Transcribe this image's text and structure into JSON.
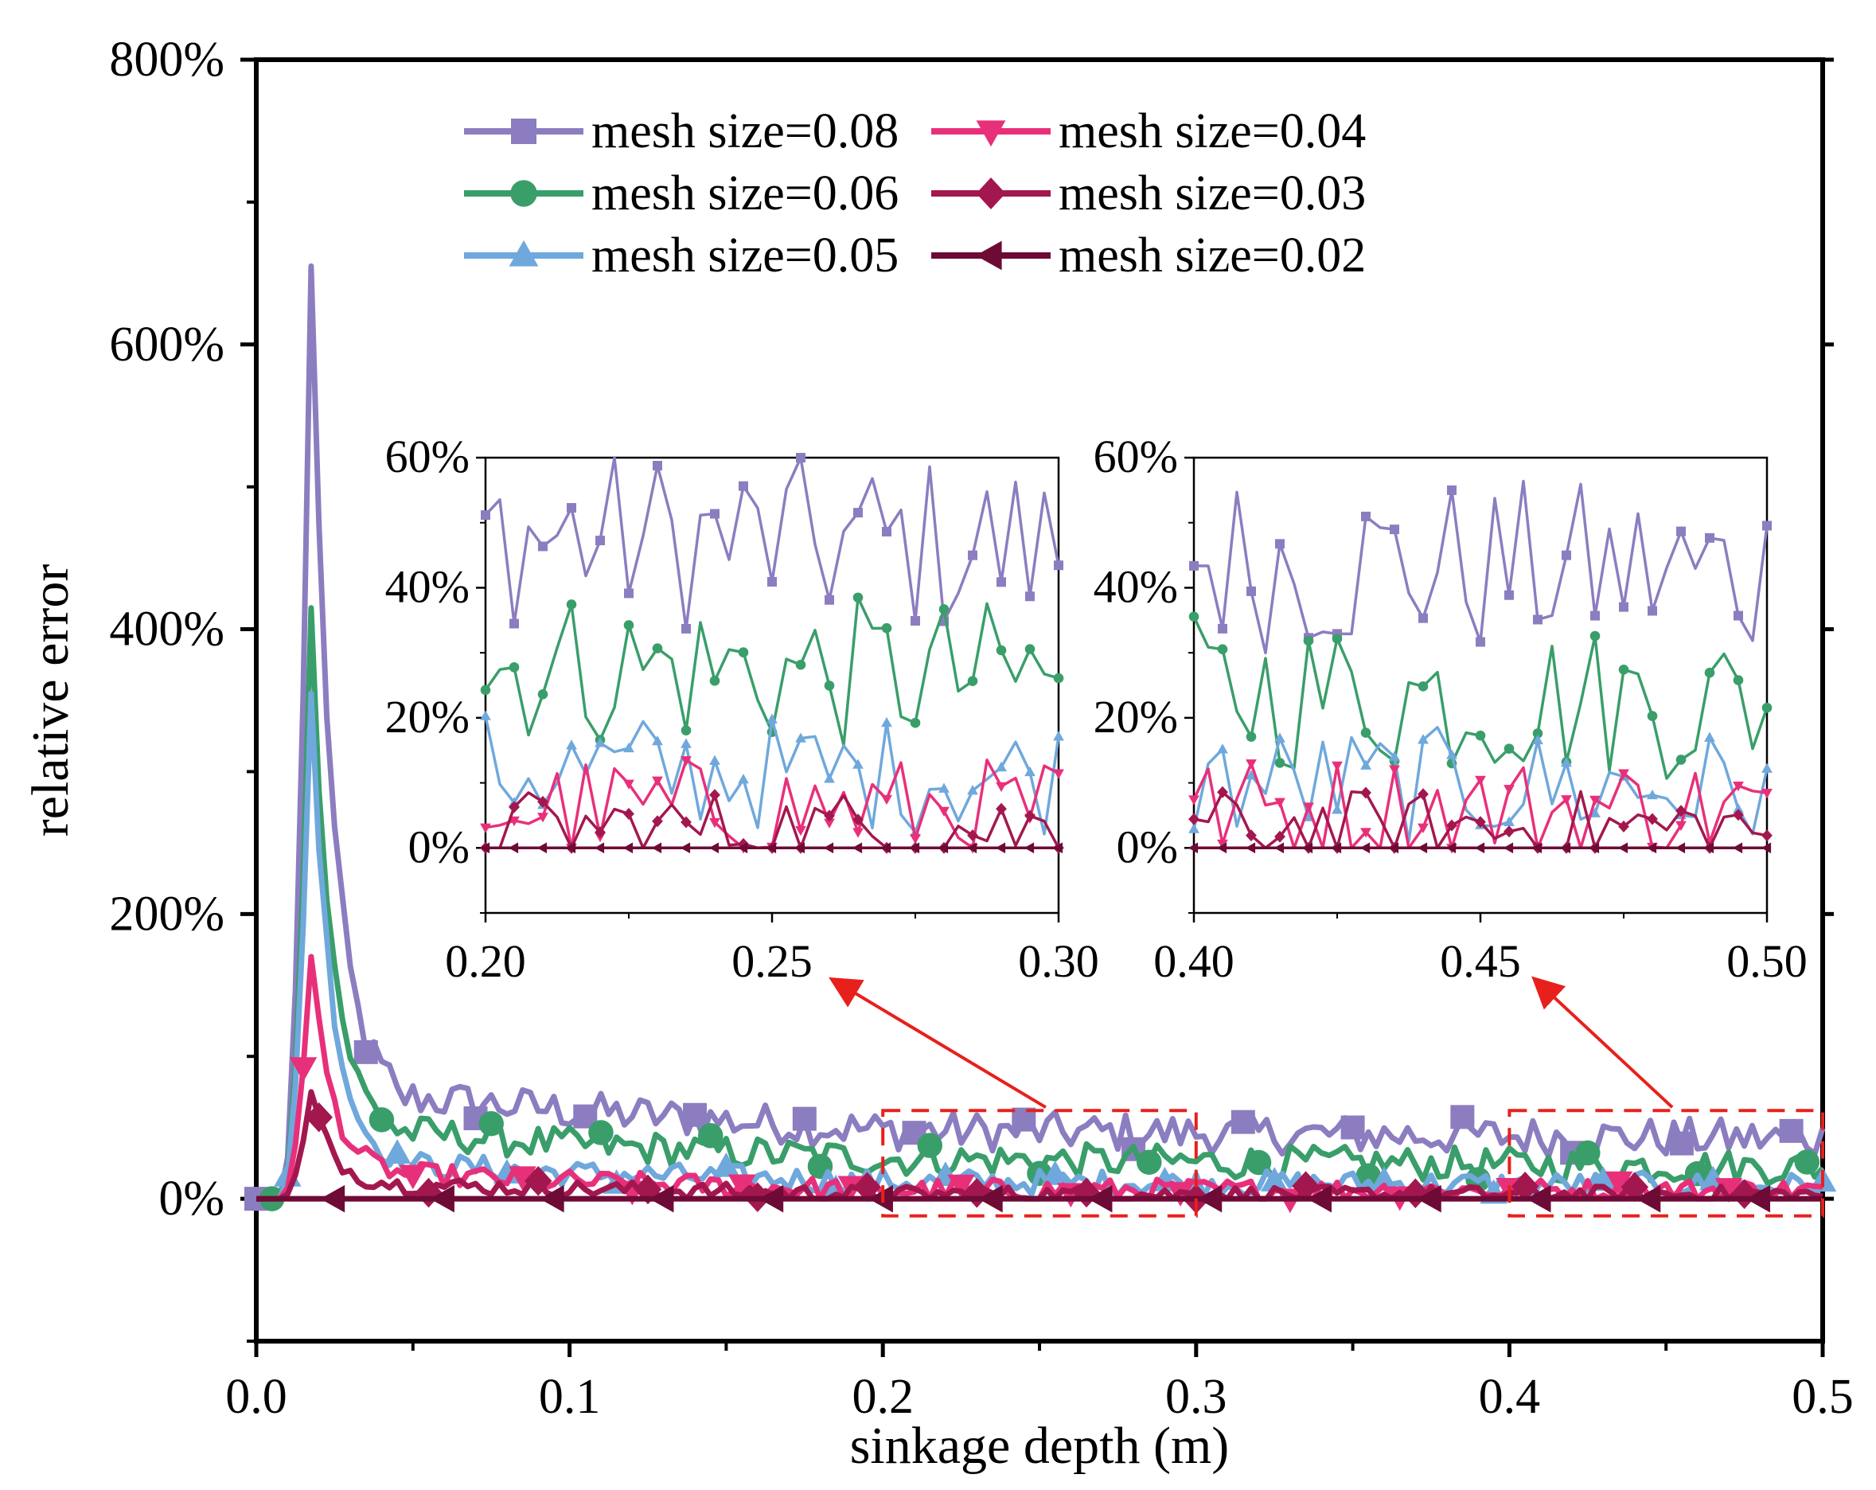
{
  "chart_data": {
    "type": "line",
    "xlabel": "sinkage depth (m)",
    "ylabel": "relative error",
    "xlim": [
      0,
      0.5
    ],
    "ylim": [
      -100,
      800
    ],
    "xticks": [
      "0.0",
      "0.1",
      "0.2",
      "0.3",
      "0.4",
      "0.5"
    ],
    "yticks": [
      "0%",
      "200%",
      "400%",
      "600%",
      "800%"
    ],
    "legend_position": "top",
    "series": [
      {
        "name": "mesh size=0.08",
        "color": "#8c7dc0",
        "marker": "square"
      },
      {
        "name": "mesh size=0.06",
        "color": "#3a9e6a",
        "marker": "circle"
      },
      {
        "name": "mesh size=0.05",
        "color": "#6fa8dc",
        "marker": "triangle-up"
      },
      {
        "name": "mesh size=0.04",
        "color": "#e8307a",
        "marker": "triangle-down"
      },
      {
        "name": "mesh size=0.03",
        "color": "#a3174f",
        "marker": "diamond"
      },
      {
        "name": "mesh size=0.02",
        "color": "#6e0a36",
        "marker": "triangle-left"
      }
    ],
    "insets": [
      {
        "xlim": [
          0.2,
          0.3
        ],
        "ylim": [
          -10,
          60
        ],
        "xticks": [
          "0.20",
          "0.25",
          "0.30"
        ],
        "yticks": [
          "0%",
          "20%",
          "40%",
          "60%"
        ]
      },
      {
        "xlim": [
          0.4,
          0.5
        ],
        "ylim": [
          -10,
          60
        ],
        "xticks": [
          "0.40",
          "0.45",
          "0.50"
        ],
        "yticks": [
          "0%",
          "20%",
          "40%",
          "60%"
        ]
      }
    ],
    "zoom_boxes": [
      {
        "xlim": [
          0.2,
          0.3
        ],
        "ylim": [
          -12,
          62
        ]
      },
      {
        "xlim": [
          0.4,
          0.5
        ],
        "ylim": [
          -12,
          62
        ]
      }
    ]
  }
}
